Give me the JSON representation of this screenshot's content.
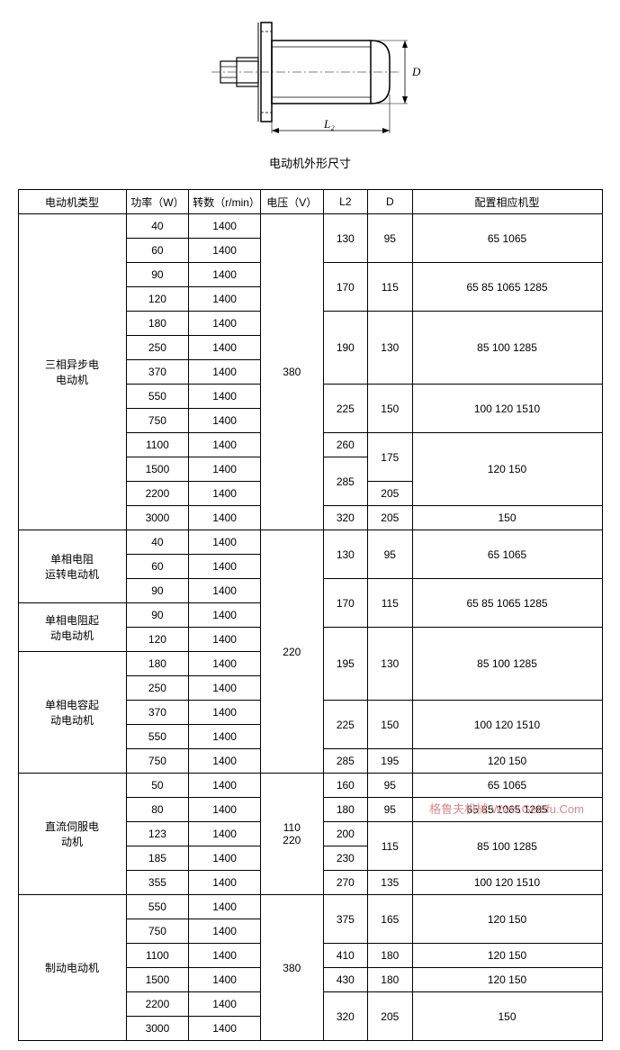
{
  "diagram": {
    "caption": "电动机外形尺寸",
    "label_L2": "L₂",
    "label_D": "D"
  },
  "watermark": "格鲁夫机械 Www.Gelufu.Com",
  "table": {
    "headers": [
      "电动机类型",
      "功率（W）",
      "转数（r/min）",
      "电压（V）",
      "L2",
      "D",
      "配置相应机型"
    ],
    "sections": [
      {
        "type": "三相异步电\n电动机",
        "voltage": "380",
        "rows": [
          {
            "power": "40",
            "rpm": "1400",
            "l2": "130",
            "d": "95",
            "model": "65    1065",
            "l2span": 2,
            "dspan": 2,
            "modelspan": 2
          },
          {
            "power": "60",
            "rpm": "1400"
          },
          {
            "power": "90",
            "rpm": "1400",
            "l2": "170",
            "d": "115",
            "model": "65 85 1065 1285",
            "l2span": 2,
            "dspan": 2,
            "modelspan": 2
          },
          {
            "power": "120",
            "rpm": "1400"
          },
          {
            "power": "180",
            "rpm": "1400",
            "l2": "190",
            "d": "130",
            "model": "85 100 1285",
            "l2span": 3,
            "dspan": 3,
            "modelspan": 3
          },
          {
            "power": "250",
            "rpm": "1400"
          },
          {
            "power": "370",
            "rpm": "1400"
          },
          {
            "power": "550",
            "rpm": "1400",
            "l2": "225",
            "d": "150",
            "model": "100   120 1510",
            "l2span": 2,
            "dspan": 2,
            "modelspan": 2
          },
          {
            "power": "750",
            "rpm": "1400"
          },
          {
            "power": "1100",
            "rpm": "1400",
            "l2": "260",
            "d": "175",
            "model": "120   150",
            "l2span": 1,
            "dspan": 2,
            "modelspan": 3
          },
          {
            "power": "1500",
            "rpm": "1400",
            "l2": "285",
            "l2span": 2
          },
          {
            "power": "2200",
            "rpm": "1400",
            "d": "205",
            "dspan": 1
          },
          {
            "power": "3000",
            "rpm": "1400",
            "l2": "320",
            "d": "205",
            "model": "150",
            "l2span": 1,
            "dspan": 1,
            "modelspan": 1
          }
        ]
      },
      {
        "type_rows": [
          {
            "label": "单相电阻\n运转电动机",
            "span": 3
          },
          {
            "label": "单相电阻起\n动电动机",
            "span": 2
          },
          {
            "label": "单相电容起\n动电动机",
            "span": 5
          }
        ],
        "voltage": "220",
        "rows": [
          {
            "power": "40",
            "rpm": "1400",
            "l2": "130",
            "d": "95",
            "model": "65   1065",
            "l2span": 2,
            "dspan": 2,
            "modelspan": 2
          },
          {
            "power": "60",
            "rpm": "1400"
          },
          {
            "power": "90",
            "rpm": "1400",
            "l2": "170",
            "d": "115",
            "model": "65 85 1065 1285",
            "l2span": 2,
            "dspan": 2,
            "modelspan": 2
          },
          {
            "power": "90",
            "rpm": "1400"
          },
          {
            "power": "120",
            "rpm": "1400",
            "l2": "195",
            "d": "130",
            "model": "85   100 1285",
            "l2span": 3,
            "dspan": 3,
            "modelspan": 3
          },
          {
            "power": "180",
            "rpm": "1400"
          },
          {
            "power": "250",
            "rpm": "1400"
          },
          {
            "power": "370",
            "rpm": "1400",
            "l2": "225",
            "d": "150",
            "model": "100 120 1510",
            "l2span": 2,
            "dspan": 2,
            "modelspan": 2
          },
          {
            "power": "550",
            "rpm": "1400"
          },
          {
            "power": "750",
            "rpm": "1400",
            "l2": "285",
            "d": "195",
            "model": "120   150",
            "l2span": 1,
            "dspan": 1,
            "modelspan": 1
          }
        ]
      },
      {
        "type": "直流伺服电\n动机",
        "voltage": "110\n220",
        "rows": [
          {
            "power": "50",
            "rpm": "1400",
            "l2": "160",
            "d": "95",
            "model": "65 1065",
            "l2span": 1,
            "dspan": 1,
            "modelspan": 1
          },
          {
            "power": "80",
            "rpm": "1400",
            "l2": "180",
            "d": "95",
            "model": "65 85 1065 1285",
            "l2span": 1,
            "dspan": 1,
            "modelspan": 1
          },
          {
            "power": "123",
            "rpm": "1400",
            "l2": "200",
            "d": "115",
            "model": "85 100 1285",
            "l2span": 1,
            "dspan": 2,
            "modelspan": 2
          },
          {
            "power": "185",
            "rpm": "1400",
            "l2": "230",
            "l2span": 1
          },
          {
            "power": "355",
            "rpm": "1400",
            "l2": "270",
            "d": "135",
            "model": "100 120 1510",
            "l2span": 1,
            "dspan": 1,
            "modelspan": 1
          }
        ]
      },
      {
        "type": "制动电动机",
        "voltage": "380",
        "rows": [
          {
            "power": "550",
            "rpm": "1400",
            "l2": "375",
            "d": "165",
            "model": "120   150",
            "l2span": 2,
            "dspan": 2,
            "modelspan": 2
          },
          {
            "power": "750",
            "rpm": "1400"
          },
          {
            "power": "1100",
            "rpm": "1400",
            "l2": "410",
            "d": "180",
            "model": "120   150",
            "l2span": 1,
            "dspan": 1,
            "modelspan": 1
          },
          {
            "power": "1500",
            "rpm": "1400",
            "l2": "430",
            "d": "180",
            "model": "120   150",
            "l2span": 1,
            "dspan": 1,
            "modelspan": 1
          },
          {
            "power": "2200",
            "rpm": "1400",
            "l2": "320",
            "d": "205",
            "model": "150",
            "l2span": 2,
            "dspan": 2,
            "modelspan": 2
          },
          {
            "power": "3000",
            "rpm": "1400"
          }
        ]
      }
    ]
  }
}
